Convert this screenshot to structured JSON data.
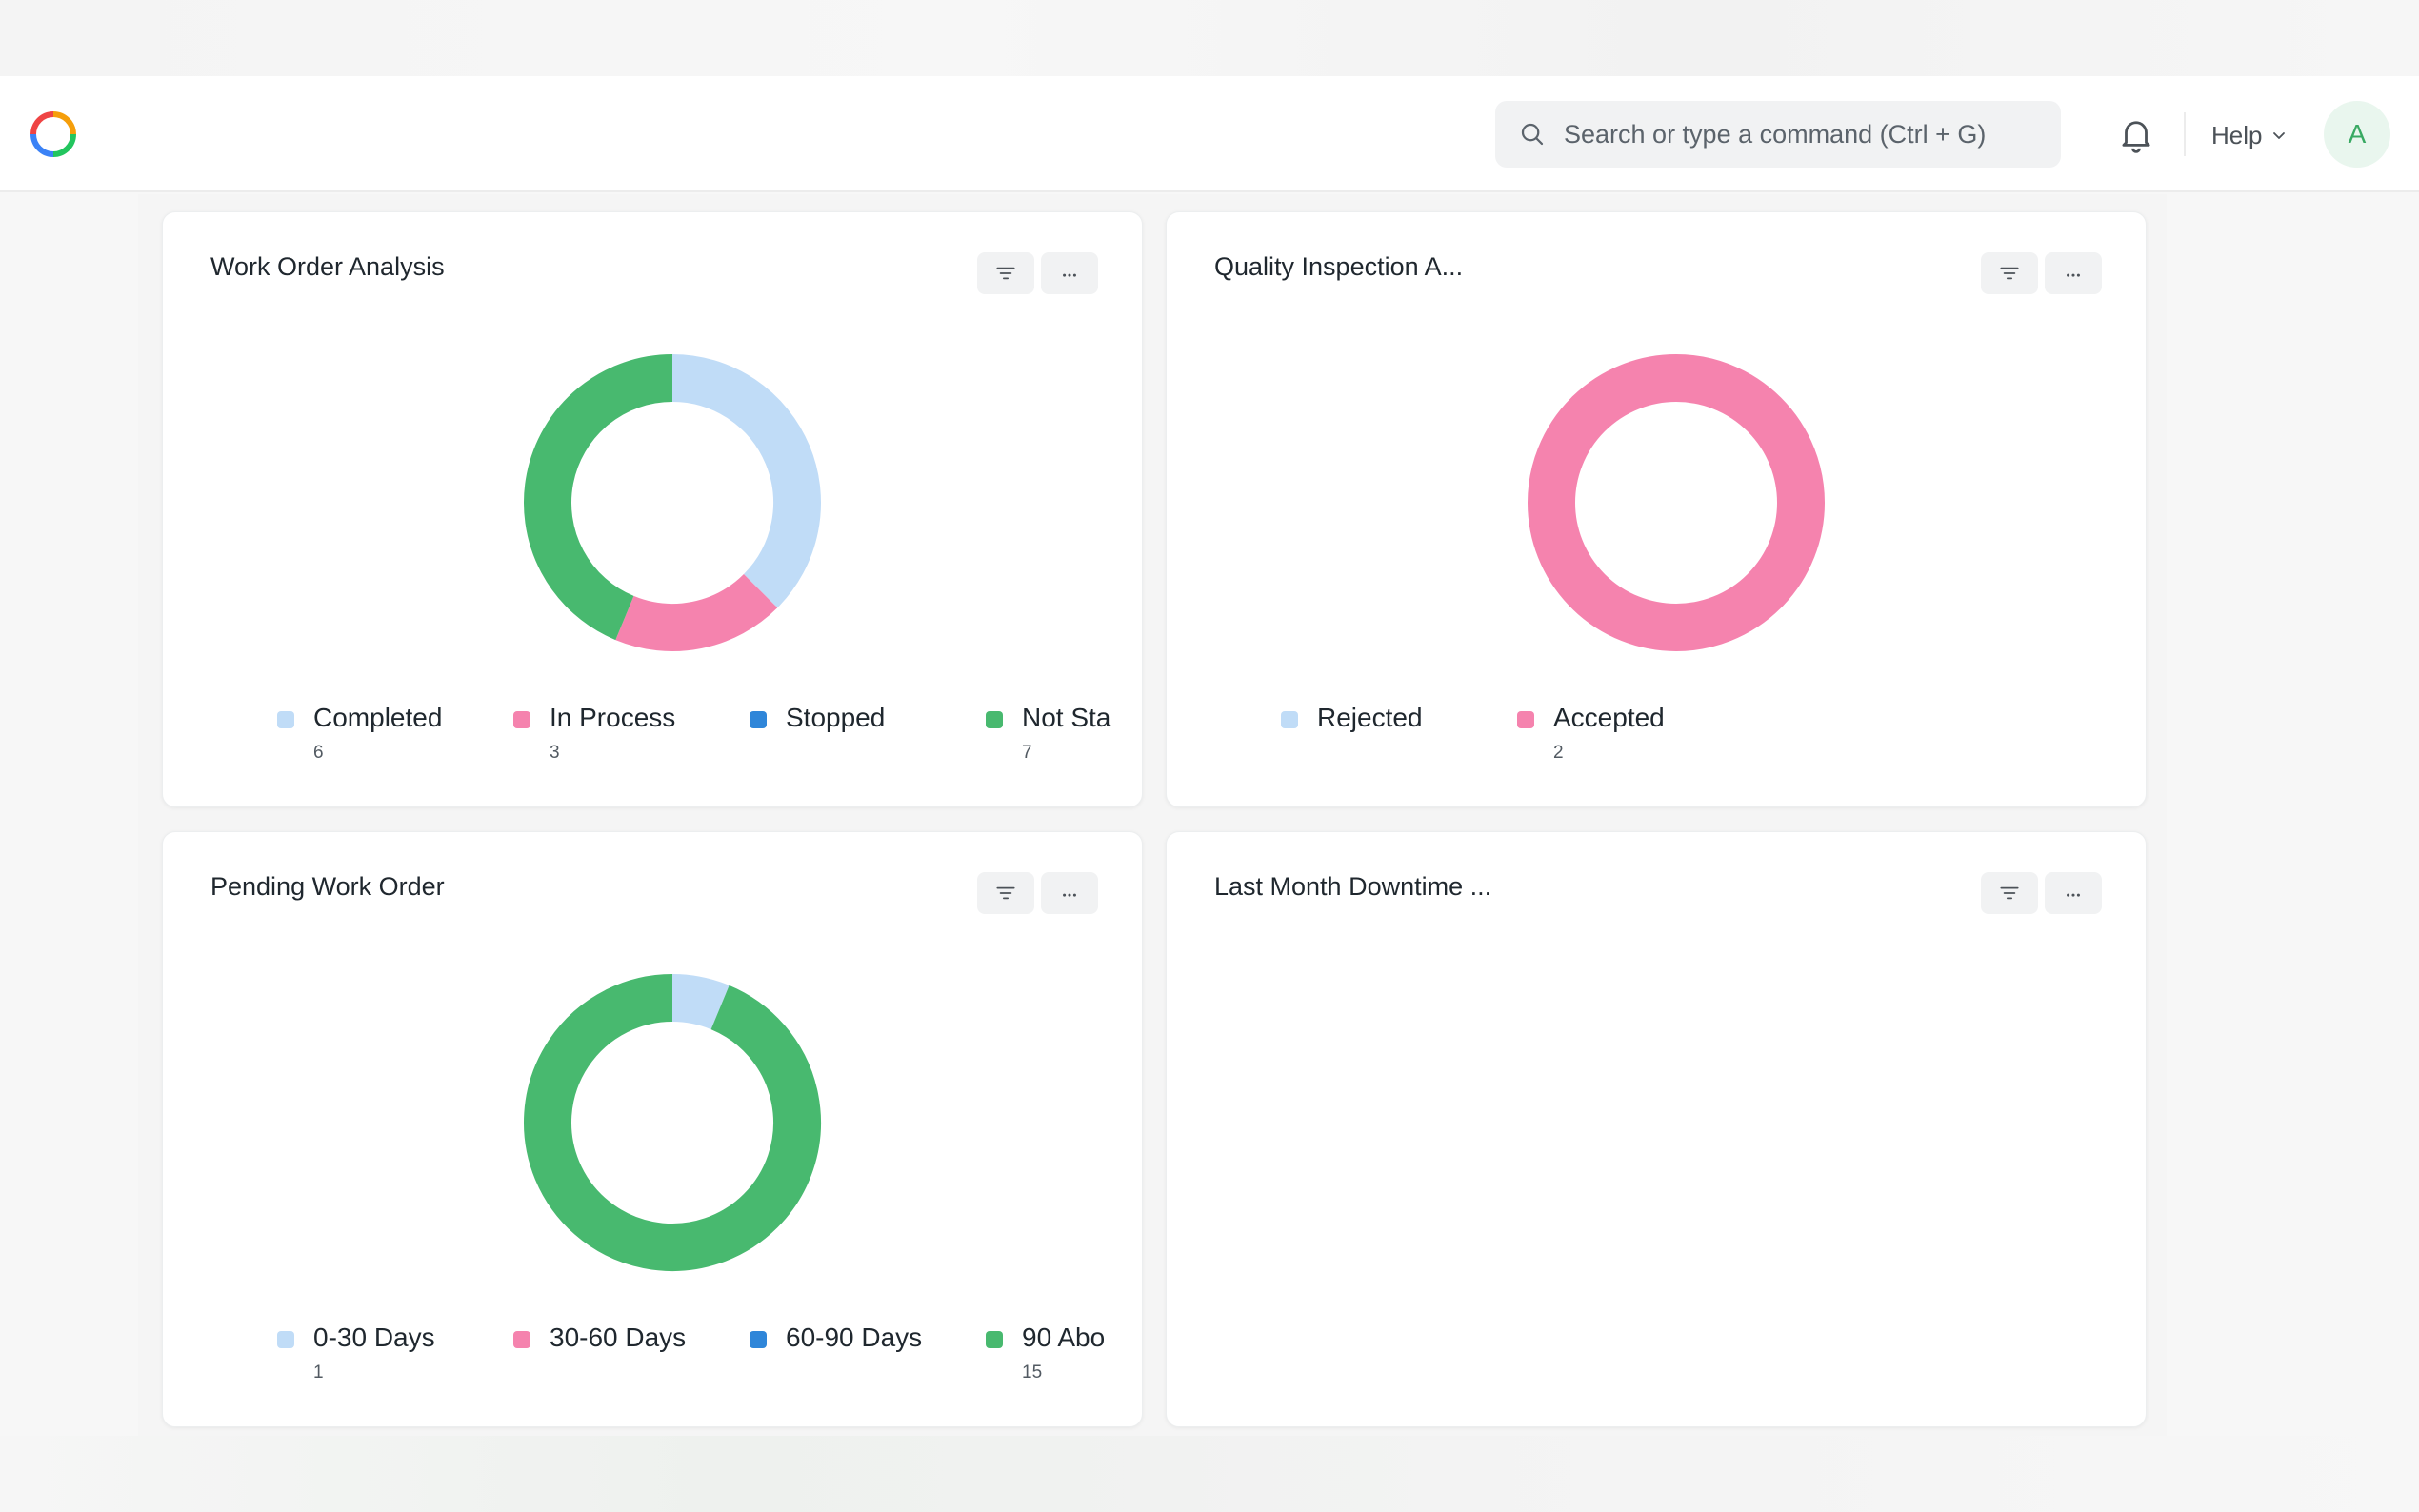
{
  "colors": {
    "light_blue": "#c0dcf7",
    "pink": "#f583ae",
    "blue": "#2f86d9",
    "green": "#48b96f",
    "accent_avatar": "#38a962"
  },
  "navbar": {
    "logo_icon": "app-logo-ring",
    "search_placeholder": "Search or type a command (Ctrl + G)",
    "notifications_icon": "bell-icon",
    "help_label": "Help",
    "avatar_initial": "A"
  },
  "cards": [
    {
      "title": "Work Order Analysis",
      "chart_data": {
        "type": "pie",
        "donut": true,
        "legend_position": "bottom",
        "categories": [
          "Completed",
          "In Process",
          "Stopped",
          "Not Sta"
        ],
        "values": [
          6,
          3,
          0,
          7
        ],
        "value_labels": [
          "6",
          "3",
          "",
          "7"
        ]
      }
    },
    {
      "title": "Quality Inspection A...",
      "chart_data": {
        "type": "pie",
        "donut": true,
        "legend_position": "bottom",
        "categories": [
          "Rejected",
          "Accepted"
        ],
        "values": [
          0,
          2
        ],
        "value_labels": [
          "",
          "2"
        ]
      }
    },
    {
      "title": "Pending Work Order",
      "chart_data": {
        "type": "pie",
        "donut": true,
        "legend_position": "bottom",
        "categories": [
          "0-30 Days",
          "30-60 Days",
          "60-90 Days",
          "90 Abo"
        ],
        "values": [
          1,
          0,
          0,
          15
        ],
        "value_labels": [
          "1",
          "",
          "",
          "15"
        ]
      }
    },
    {
      "title": "Last Month Downtime ...",
      "chart_data": null
    }
  ]
}
